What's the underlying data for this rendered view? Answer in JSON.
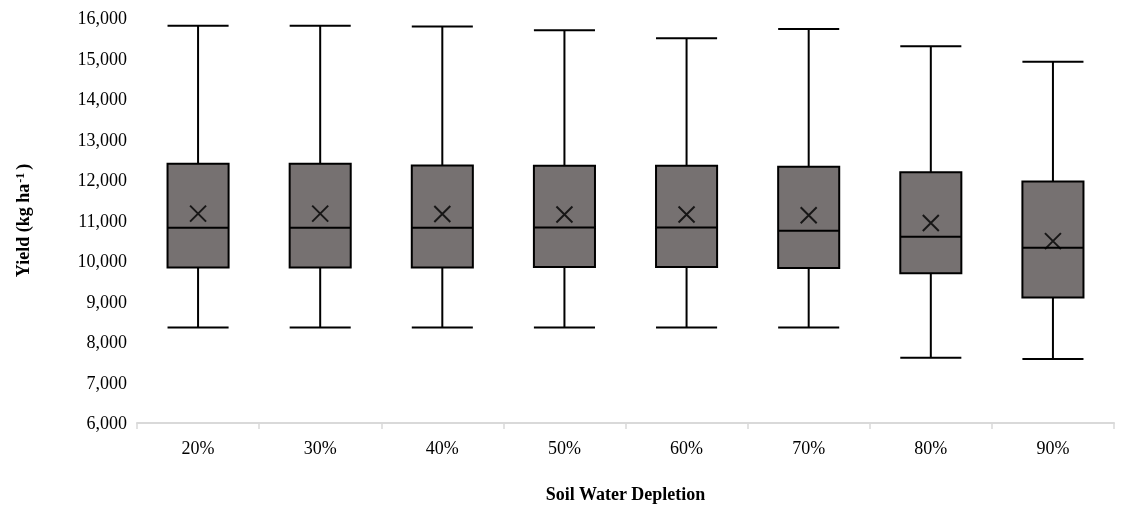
{
  "chart_data": {
    "type": "box",
    "xlabel": "Soil Water Depletion",
    "ylabel": "Yield (kg ha$^{-1}$)",
    "categories": [
      "20%",
      "30%",
      "40%",
      "50%",
      "60%",
      "70%",
      "80%",
      "90%"
    ],
    "color": "#767171",
    "boxes": [
      {
        "low": 8360,
        "q1": 9840,
        "median": 10820,
        "q3": 12400,
        "high": 15810,
        "mean": 11170
      },
      {
        "low": 8360,
        "q1": 9840,
        "median": 10820,
        "q3": 12400,
        "high": 15810,
        "mean": 11170
      },
      {
        "low": 8360,
        "q1": 9840,
        "median": 10820,
        "q3": 12360,
        "high": 15790,
        "mean": 11160
      },
      {
        "low": 8360,
        "q1": 9850,
        "median": 10830,
        "q3": 12350,
        "high": 15700,
        "mean": 11150
      },
      {
        "low": 8360,
        "q1": 9850,
        "median": 10830,
        "q3": 12350,
        "high": 15500,
        "mean": 11150
      },
      {
        "low": 8360,
        "q1": 9830,
        "median": 10750,
        "q3": 12330,
        "high": 15730,
        "mean": 11130
      },
      {
        "low": 7610,
        "q1": 9700,
        "median": 10600,
        "q3": 12190,
        "high": 15300,
        "mean": 10940
      },
      {
        "low": 7580,
        "q1": 9100,
        "median": 10330,
        "q3": 11960,
        "high": 14920,
        "mean": 10490
      }
    ],
    "ylim": [
      6000,
      16000
    ],
    "yticks": [
      {
        "value": 6000,
        "label": "6,000"
      },
      {
        "value": 7000,
        "label": "7,000"
      },
      {
        "value": 8000,
        "label": "8,000"
      },
      {
        "value": 9000,
        "label": "9,000"
      },
      {
        "value": 10000,
        "label": "10,000"
      },
      {
        "value": 11000,
        "label": "11,000"
      },
      {
        "value": 12000,
        "label": "12,000"
      },
      {
        "value": 13000,
        "label": "13,000"
      },
      {
        "value": 14000,
        "label": "14,000"
      },
      {
        "value": 15000,
        "label": "15,000"
      },
      {
        "value": 16000,
        "label": "16,000"
      }
    ],
    "grid": false,
    "marker": "cross"
  }
}
